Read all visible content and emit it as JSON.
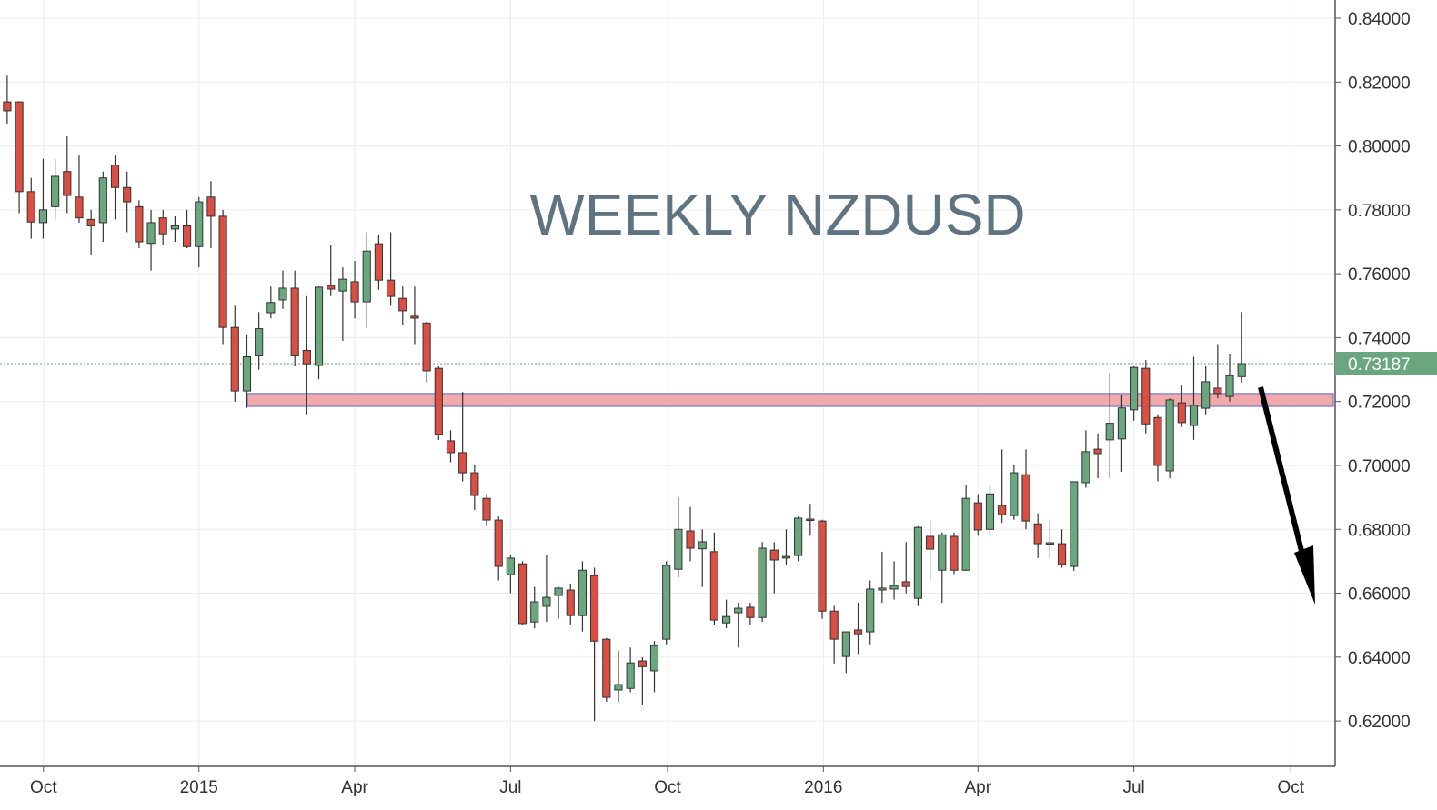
{
  "chart_data": {
    "type": "candlestick",
    "title": "WEEKLY NZDUSD",
    "xlim": [
      -0.6,
      110.8
    ],
    "xticks": [
      {
        "value": 3.03,
        "label": "Oct"
      },
      {
        "value": 16.0,
        "label": "2015"
      },
      {
        "value": 29.0,
        "label": "Apr"
      },
      {
        "value": 42.0,
        "label": "Jul"
      },
      {
        "value": 55.1,
        "label": "Oct"
      },
      {
        "value": 68.1,
        "label": "2016"
      },
      {
        "value": 81.0,
        "label": "Apr"
      },
      {
        "value": 94.0,
        "label": "Jul"
      },
      {
        "value": 107.1,
        "label": "Oct"
      }
    ],
    "ylim": [
      0.6058,
      0.8457
    ],
    "yticks": [
      {
        "value": 0.62,
        "label": "0.62000"
      },
      {
        "value": 0.64,
        "label": "0.64000"
      },
      {
        "value": 0.66,
        "label": "0.66000"
      },
      {
        "value": 0.68,
        "label": "0.68000"
      },
      {
        "value": 0.7,
        "label": "0.70000"
      },
      {
        "value": 0.72,
        "label": "0.72000"
      },
      {
        "value": 0.74,
        "label": "0.74000"
      },
      {
        "value": 0.76,
        "label": "0.76000"
      },
      {
        "value": 0.78,
        "label": "0.78000"
      },
      {
        "value": 0.8,
        "label": "0.80000"
      },
      {
        "value": 0.82,
        "label": "0.82000"
      },
      {
        "value": 0.84,
        "label": "0.84000"
      }
    ],
    "grid": true,
    "up_color": "#6aa77f",
    "down_color": "#d94f43",
    "last_price": 0.73187,
    "zone": {
      "low": 0.7185,
      "high": 0.7225
    },
    "open": [
      0.8138,
      0.8138,
      0.7857,
      0.776,
      0.781,
      0.792,
      0.784,
      0.777,
      0.776,
      0.794,
      0.787,
      0.781,
      0.7695,
      0.7775,
      0.774,
      0.775,
      0.7685,
      0.784,
      0.778,
      0.7432,
      0.7233,
      0.7343,
      0.7478,
      0.7518,
      0.7555,
      0.736,
      0.7313,
      0.7563,
      0.7546,
      0.7575,
      0.7512,
      0.7694,
      0.758,
      0.7523,
      0.7467,
      0.7446,
      0.7304,
      0.7077,
      0.704,
      0.6977,
      0.6897,
      0.6829,
      0.6658,
      0.6692,
      0.651,
      0.6559,
      0.6593,
      0.661,
      0.653,
      0.6655,
      0.6456,
      0.6297,
      0.6302,
      0.6388,
      0.6357,
      0.6456,
      0.6675,
      0.6795,
      0.6739,
      0.673,
      0.6507,
      0.6539,
      0.6556,
      0.6524,
      0.6735,
      0.671,
      0.6718,
      0.6832,
      0.6826,
      0.6544,
      0.6402,
      0.6485,
      0.6479,
      0.661,
      0.6613,
      0.6636,
      0.6584,
      0.6778,
      0.6672,
      0.6778,
      0.6672,
      0.6883,
      0.68,
      0.6875,
      0.6843,
      0.6971,
      0.6817,
      0.6755,
      0.6755,
      0.6684,
      0.6946,
      0.7051,
      0.708,
      0.7083,
      0.7174,
      0.7304,
      0.715,
      0.6983,
      0.7196,
      0.7125,
      0.7179,
      0.7242,
      0.7216,
      0.7278
    ],
    "high": [
      0.822,
      0.814,
      0.79,
      0.796,
      0.796,
      0.803,
      0.797,
      0.78,
      0.792,
      0.797,
      0.792,
      0.783,
      0.78,
      0.78,
      0.778,
      0.78,
      0.784,
      0.789,
      0.78,
      0.75,
      0.741,
      0.748,
      0.756,
      0.761,
      0.761,
      0.753,
      0.756,
      0.769,
      0.762,
      0.764,
      0.773,
      0.772,
      0.773,
      0.756,
      0.756,
      0.745,
      0.731,
      0.711,
      0.723,
      0.7,
      0.691,
      0.684,
      0.672,
      0.67,
      0.662,
      0.672,
      0.662,
      0.663,
      0.67,
      0.668,
      0.646,
      0.642,
      0.643,
      0.64,
      0.645,
      0.67,
      0.69,
      0.687,
      0.68,
      0.679,
      0.658,
      0.657,
      0.657,
      0.676,
      0.676,
      0.68,
      0.684,
      0.688,
      0.683,
      0.656,
      0.648,
      0.657,
      0.664,
      0.673,
      0.67,
      0.676,
      0.681,
      0.683,
      0.679,
      0.679,
      0.694,
      0.691,
      0.694,
      0.705,
      0.7,
      0.705,
      0.685,
      0.683,
      0.68,
      0.695,
      0.711,
      0.71,
      0.729,
      0.722,
      0.731,
      0.733,
      0.716,
      0.721,
      0.725,
      0.734,
      0.731,
      0.738,
      0.735,
      0.748
    ],
    "low": [
      0.807,
      0.779,
      0.771,
      0.771,
      0.777,
      0.779,
      0.776,
      0.766,
      0.77,
      0.777,
      0.773,
      0.768,
      0.761,
      0.769,
      0.77,
      0.768,
      0.762,
      0.768,
      0.738,
      0.72,
      0.718,
      0.73,
      0.746,
      0.749,
      0.731,
      0.716,
      0.727,
      0.753,
      0.739,
      0.746,
      0.743,
      0.755,
      0.75,
      0.744,
      0.738,
      0.726,
      0.708,
      0.701,
      0.695,
      0.686,
      0.681,
      0.664,
      0.66,
      0.65,
      0.649,
      0.651,
      0.652,
      0.65,
      0.648,
      0.62,
      0.626,
      0.626,
      0.629,
      0.625,
      0.629,
      0.644,
      0.665,
      0.67,
      0.662,
      0.65,
      0.649,
      0.643,
      0.65,
      0.651,
      0.66,
      0.669,
      0.67,
      0.678,
      0.652,
      0.638,
      0.635,
      0.641,
      0.644,
      0.657,
      0.658,
      0.66,
      0.656,
      0.664,
      0.657,
      0.666,
      0.667,
      0.678,
      0.678,
      0.682,
      0.683,
      0.68,
      0.671,
      0.671,
      0.668,
      0.667,
      0.693,
      0.696,
      0.696,
      0.698,
      0.714,
      0.71,
      0.695,
      0.696,
      0.712,
      0.708,
      0.716,
      0.721,
      0.72,
      0.726
    ],
    "close": [
      0.811,
      0.7857,
      0.7762,
      0.78,
      0.7905,
      0.7845,
      0.7775,
      0.775,
      0.79,
      0.787,
      0.7825,
      0.77,
      0.776,
      0.7725,
      0.775,
      0.7685,
      0.7825,
      0.778,
      0.7432,
      0.7233,
      0.734,
      0.7428,
      0.751,
      0.7555,
      0.7343,
      0.7318,
      0.7558,
      0.7552,
      0.7583,
      0.7512,
      0.7671,
      0.758,
      0.7529,
      0.7484,
      0.7461,
      0.7296,
      0.7097,
      0.704,
      0.6977,
      0.6906,
      0.6829,
      0.6684,
      0.671,
      0.6505,
      0.6573,
      0.6587,
      0.6616,
      0.653,
      0.6672,
      0.645,
      0.6274,
      0.6314,
      0.6382,
      0.637,
      0.6436,
      0.6687,
      0.68,
      0.6741,
      0.6761,
      0.6516,
      0.6527,
      0.6553,
      0.6524,
      0.6741,
      0.6704,
      0.6715,
      0.6835,
      0.6829,
      0.6544,
      0.6456,
      0.6479,
      0.6473,
      0.6613,
      0.6616,
      0.6624,
      0.6621,
      0.6806,
      0.6738,
      0.6783,
      0.6672,
      0.6897,
      0.6798,
      0.6911,
      0.6846,
      0.6977,
      0.6826,
      0.6755,
      0.6758,
      0.669,
      0.6949,
      0.7043,
      0.7037,
      0.7132,
      0.718,
      0.7307,
      0.713,
      0.7,
      0.7205,
      0.7134,
      0.7188,
      0.7262,
      0.7225,
      0.7281,
      0.73187
    ]
  }
}
